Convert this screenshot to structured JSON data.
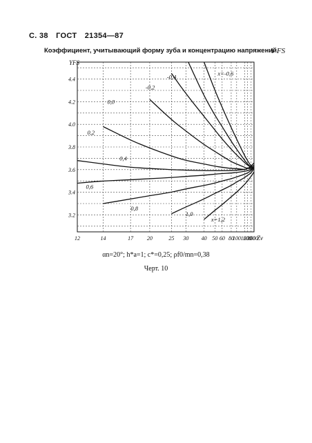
{
  "header": {
    "page": "С. 38",
    "standard": "ГОСТ",
    "number": "21354—87"
  },
  "caption": "Коэффициент, учитывающий форму зуба и концентрацию напряжений",
  "y_symbol": "Y FS",
  "parameters": "αn=20°; h*a=1; c*=0,25; ρf0/mn=0,38",
  "figure_label": "Черт. 10",
  "chart_data": {
    "type": "line",
    "title": "",
    "xlabel": "Zv",
    "ylabel": "YFS",
    "x_scale": "reciprocal",
    "x_ticks": [
      "12",
      "14",
      "17",
      "20",
      "25",
      "30",
      "40",
      "50",
      "60",
      "80",
      "100",
      "160",
      "200",
      "300",
      "500"
    ],
    "y_ticks": [
      "3.2",
      "3.4",
      "3.6",
      "3.8",
      "4.0",
      "4.2",
      "4.4"
    ],
    "ylim": [
      3.05,
      4.55
    ],
    "grid": true,
    "series": [
      {
        "name": "x=-0,6",
        "points": [
          [
            40,
            4.55
          ],
          [
            50,
            4.3
          ],
          [
            60,
            4.15
          ],
          [
            80,
            3.97
          ],
          [
            100,
            3.87
          ],
          [
            160,
            3.72
          ],
          [
            200,
            3.68
          ],
          [
            300,
            3.63
          ],
          [
            500,
            3.61
          ]
        ]
      },
      {
        "name": "-0,4",
        "points": [
          [
            31,
            4.55
          ],
          [
            40,
            4.25
          ],
          [
            50,
            4.08
          ],
          [
            60,
            3.98
          ],
          [
            80,
            3.85
          ],
          [
            100,
            3.78
          ],
          [
            160,
            3.68
          ],
          [
            200,
            3.65
          ],
          [
            300,
            3.62
          ],
          [
            500,
            3.61
          ]
        ]
      },
      {
        "name": "-0,2",
        "points": [
          [
            25,
            4.45
          ],
          [
            30,
            4.27
          ],
          [
            40,
            4.07
          ],
          [
            50,
            3.95
          ],
          [
            60,
            3.87
          ],
          [
            80,
            3.78
          ],
          [
            100,
            3.73
          ],
          [
            160,
            3.66
          ],
          [
            200,
            3.64
          ],
          [
            300,
            3.62
          ],
          [
            500,
            3.61
          ]
        ]
      },
      {
        "name": "0,0",
        "points": [
          [
            20,
            4.22
          ],
          [
            25,
            4.04
          ],
          [
            30,
            3.94
          ],
          [
            40,
            3.82
          ],
          [
            50,
            3.76
          ],
          [
            60,
            3.72
          ],
          [
            80,
            3.67
          ],
          [
            100,
            3.65
          ],
          [
            160,
            3.62
          ],
          [
            200,
            3.61
          ],
          [
            300,
            3.61
          ],
          [
            500,
            3.61
          ]
        ]
      },
      {
        "name": "0,2",
        "points": [
          [
            14,
            3.98
          ],
          [
            17,
            3.86
          ],
          [
            20,
            3.79
          ],
          [
            25,
            3.72
          ],
          [
            30,
            3.68
          ],
          [
            40,
            3.65
          ],
          [
            50,
            3.63
          ],
          [
            60,
            3.62
          ],
          [
            80,
            3.61
          ],
          [
            100,
            3.61
          ],
          [
            160,
            3.6
          ],
          [
            200,
            3.61
          ],
          [
            300,
            3.62
          ],
          [
            500,
            3.64
          ]
        ]
      },
      {
        "name": "0,4",
        "points": [
          [
            12,
            3.68
          ],
          [
            14,
            3.65
          ],
          [
            17,
            3.62
          ],
          [
            20,
            3.61
          ],
          [
            25,
            3.6
          ],
          [
            30,
            3.595
          ],
          [
            40,
            3.59
          ],
          [
            50,
            3.59
          ],
          [
            60,
            3.59
          ],
          [
            80,
            3.59
          ],
          [
            100,
            3.595
          ],
          [
            160,
            3.6
          ],
          [
            200,
            3.61
          ],
          [
            300,
            3.63
          ],
          [
            500,
            3.66
          ]
        ]
      },
      {
        "name": "0,6",
        "points": [
          [
            12,
            3.48
          ],
          [
            14,
            3.5
          ],
          [
            17,
            3.51
          ],
          [
            20,
            3.52
          ],
          [
            25,
            3.53
          ],
          [
            30,
            3.54
          ],
          [
            40,
            3.55
          ],
          [
            50,
            3.56
          ],
          [
            60,
            3.565
          ],
          [
            80,
            3.57
          ],
          [
            100,
            3.575
          ],
          [
            160,
            3.585
          ],
          [
            200,
            3.59
          ],
          [
            300,
            3.6
          ],
          [
            500,
            3.63
          ]
        ]
      },
      {
        "name": "0,8",
        "points": [
          [
            14,
            3.3
          ],
          [
            17,
            3.34
          ],
          [
            20,
            3.37
          ],
          [
            25,
            3.4
          ],
          [
            30,
            3.43
          ],
          [
            40,
            3.46
          ],
          [
            50,
            3.48
          ],
          [
            60,
            3.5
          ],
          [
            80,
            3.52
          ],
          [
            100,
            3.535
          ],
          [
            160,
            3.56
          ],
          [
            200,
            3.57
          ],
          [
            300,
            3.59
          ],
          [
            500,
            3.62
          ]
        ]
      },
      {
        "name": "1,0",
        "points": [
          [
            25,
            3.21
          ],
          [
            30,
            3.27
          ],
          [
            40,
            3.34
          ],
          [
            50,
            3.39
          ],
          [
            60,
            3.42
          ],
          [
            80,
            3.46
          ],
          [
            100,
            3.49
          ],
          [
            160,
            3.53
          ],
          [
            200,
            3.55
          ],
          [
            300,
            3.57
          ],
          [
            500,
            3.61
          ]
        ]
      },
      {
        "name": "x=1,2",
        "points": [
          [
            40,
            3.16
          ],
          [
            50,
            3.24
          ],
          [
            60,
            3.29
          ],
          [
            80,
            3.36
          ],
          [
            100,
            3.4
          ],
          [
            160,
            3.47
          ],
          [
            200,
            3.5
          ],
          [
            300,
            3.54
          ],
          [
            500,
            3.58
          ]
        ]
      }
    ]
  }
}
